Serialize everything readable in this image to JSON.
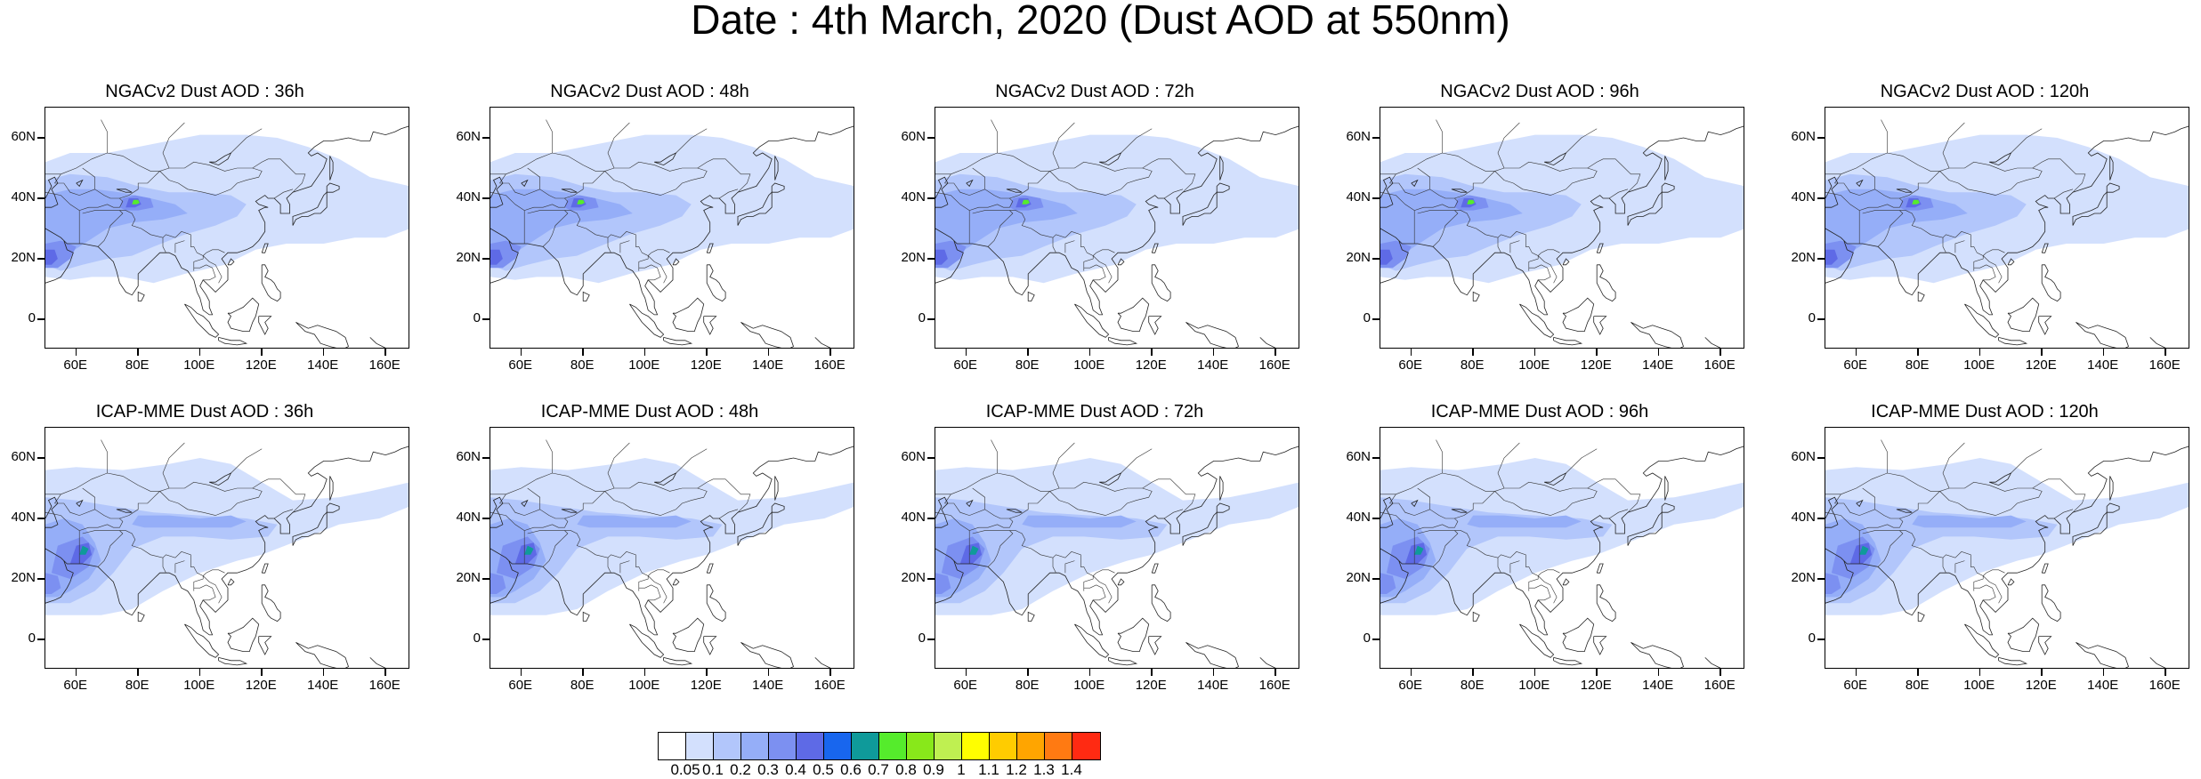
{
  "title": "Date : 4th March, 2020 (Dust AOD at 550nm)",
  "y_ticks": [
    "60N",
    "40N",
    "20N",
    "0"
  ],
  "x_ticks": [
    "60E",
    "80E",
    "100E",
    "120E",
    "140E",
    "160E"
  ],
  "panels": [
    {
      "title": "NGACv2 Dust AOD : 36h",
      "model": "NGACv2",
      "lead": "36h"
    },
    {
      "title": "NGACv2 Dust AOD : 48h",
      "model": "NGACv2",
      "lead": "48h"
    },
    {
      "title": "NGACv2 Dust AOD : 72h",
      "model": "NGACv2",
      "lead": "72h"
    },
    {
      "title": "NGACv2 Dust AOD : 96h",
      "model": "NGACv2",
      "lead": "96h"
    },
    {
      "title": "NGACv2 Dust AOD : 120h",
      "model": "NGACv2",
      "lead": "120h"
    },
    {
      "title": "ICAP-MME Dust AOD : 36h",
      "model": "ICAP-MME",
      "lead": "36h"
    },
    {
      "title": "ICAP-MME Dust AOD : 48h",
      "model": "ICAP-MME",
      "lead": "48h"
    },
    {
      "title": "ICAP-MME Dust AOD : 72h",
      "model": "ICAP-MME",
      "lead": "72h"
    },
    {
      "title": "ICAP-MME Dust AOD : 96h",
      "model": "ICAP-MME",
      "lead": "96h"
    },
    {
      "title": "ICAP-MME Dust AOD : 120h",
      "model": "ICAP-MME",
      "lead": "120h"
    }
  ],
  "colorbar": {
    "labels": [
      "0.05",
      "0.1",
      "0.2",
      "0.3",
      "0.4",
      "0.5",
      "0.6",
      "0.7",
      "0.8",
      "0.9",
      "1",
      "1.1",
      "1.2",
      "1.3",
      "1.4"
    ],
    "colors": [
      "#ffffff",
      "#d3e0fd",
      "#b2c6fb",
      "#95aef8",
      "#7c90f1",
      "#5e6ae6",
      "#1866ee",
      "#0f9a9a",
      "#55ec2c",
      "#88e81a",
      "#bff051",
      "#fffe00",
      "#ffcc00",
      "#ffa500",
      "#ff7a12",
      "#ff2a12"
    ]
  },
  "palette": {
    "light": "#d3e0fd",
    "mid": "#b2c6fb",
    "medium": "#95aef8",
    "strong": "#7c90f1",
    "deep": "#5e6ae6",
    "green": "#55ec2c",
    "teal": "#0f9a9a"
  }
}
